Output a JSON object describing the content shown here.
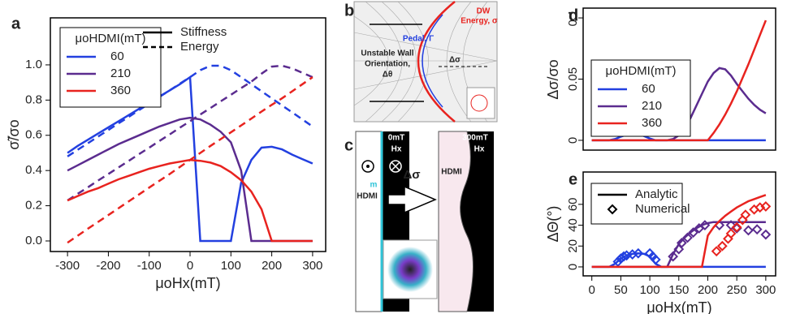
{
  "chart_data": [
    {
      "type": "line",
      "panel_label": "a",
      "xlabel": "μoHx(mT)",
      "ylabel": "σ̃/σo",
      "x": [
        -300,
        -275,
        -250,
        -225,
        -200,
        -175,
        -150,
        -125,
        -100,
        -75,
        -50,
        -25,
        0,
        25,
        50,
        75,
        100,
        125,
        150,
        175,
        200,
        225,
        250,
        275,
        300
      ],
      "xlim": [
        -342,
        332
      ],
      "ylim": [
        -0.06,
        1.267
      ],
      "xticks": [
        -300,
        -200,
        -100,
        0,
        100,
        200,
        300
      ],
      "yticks": [
        {
          "value": 0,
          "label": "0.0"
        },
        0.2,
        0.4,
        0.6,
        0.8,
        {
          "value": 1,
          "label": "1.0"
        }
      ],
      "legend_title": "μoHDMI(mT)",
      "line_legend": [
        {
          "name": "Stiffness",
          "dash": false
        },
        {
          "name": "Energy",
          "dash": true
        }
      ],
      "series": [
        {
          "name": "60",
          "color": "#2340e0",
          "values": [
            0.5,
            0.54,
            0.575,
            0.61,
            0.645,
            0.68,
            0.715,
            0.75,
            0.785,
            0.82,
            0.855,
            0.89,
            0.93,
            0,
            0,
            0,
            0,
            0.33,
            0.46,
            0.53,
            0.535,
            0.52,
            0.49,
            0.465,
            0.44
          ],
          "energy": [
            0.48,
            0.518,
            0.555,
            0.593,
            0.63,
            0.668,
            0.705,
            0.743,
            0.78,
            0.818,
            0.855,
            0.893,
            0.93,
            0.97,
            0.995,
            0.995,
            0.97,
            0.93,
            0.89,
            0.85,
            0.81,
            0.77,
            0.73,
            0.69,
            0.65
          ]
        },
        {
          "name": "210",
          "color": "#5b2c8f",
          "values": [
            0.4,
            0.43,
            0.46,
            0.49,
            0.52,
            0.55,
            0.575,
            0.6,
            0.625,
            0.65,
            0.67,
            0.69,
            0.7,
            0.69,
            0.66,
            0.62,
            0.56,
            0.4,
            0,
            0,
            0,
            0,
            0,
            0,
            0
          ],
          "energy": [
            0.23,
            0.268,
            0.305,
            0.343,
            0.38,
            0.418,
            0.455,
            0.493,
            0.53,
            0.568,
            0.605,
            0.643,
            0.68,
            0.718,
            0.755,
            0.793,
            0.83,
            0.868,
            0.905,
            0.95,
            0.99,
            0.995,
            0.98,
            0.955,
            0.93
          ]
        },
        {
          "name": "360",
          "color": "#e8231f",
          "values": [
            0.23,
            0.255,
            0.28,
            0.3,
            0.325,
            0.35,
            0.37,
            0.39,
            0.41,
            0.425,
            0.44,
            0.45,
            0.46,
            0.455,
            0.445,
            0.425,
            0.39,
            0.345,
            0.28,
            0.18,
            0,
            0,
            0,
            0,
            0
          ],
          "energy": [
            -0.01,
            0.03,
            0.07,
            0.108,
            0.147,
            0.186,
            0.225,
            0.264,
            0.303,
            0.342,
            0.38,
            0.42,
            0.46,
            0.5,
            0.54,
            0.578,
            0.617,
            0.656,
            0.695,
            0.735,
            0.773,
            0.81,
            0.85,
            0.89,
            0.93
          ]
        }
      ]
    },
    {
      "type": "line",
      "panel_label": "d",
      "ylabel": "Δσ/σo",
      "x": [
        0,
        10,
        20,
        30,
        40,
        50,
        60,
        70,
        80,
        90,
        100,
        110,
        120,
        130,
        140,
        150,
        160,
        170,
        180,
        190,
        200,
        210,
        220,
        230,
        240,
        250,
        260,
        270,
        280,
        290,
        300
      ],
      "xlim": [
        -15,
        317
      ],
      "ylim": [
        -0.008,
        0.108
      ],
      "yticks": [
        0,
        0.05,
        0.1
      ],
      "legend_title": "μoHDMI(mT)",
      "series": [
        {
          "name": "60",
          "color": "#2340e0",
          "values": [
            0,
            0,
            0,
            0,
            0.001,
            0.003,
            0.0045,
            0.005,
            0.005,
            0.0035,
            0.0015,
            0,
            0,
            0,
            0,
            0,
            0,
            0,
            0,
            0,
            0,
            0,
            0,
            0,
            0,
            0,
            0,
            0,
            0,
            0,
            0
          ]
        },
        {
          "name": "210",
          "color": "#5b2c8f",
          "values": [
            0,
            0,
            0,
            0,
            0,
            0,
            0,
            0,
            0,
            0,
            0,
            0,
            0,
            0,
            0.001,
            0.004,
            0.01,
            0.018,
            0.028,
            0.038,
            0.048,
            0.055,
            0.059,
            0.058,
            0.053,
            0.046,
            0.04,
            0.034,
            0.029,
            0.025,
            0.022
          ]
        },
        {
          "name": "360",
          "color": "#e8231f",
          "values": [
            0,
            0,
            0,
            0,
            0,
            0,
            0,
            0,
            0,
            0,
            0,
            0,
            0,
            0,
            0,
            0,
            0,
            0,
            0,
            0,
            0,
            0.006,
            0.013,
            0.021,
            0.03,
            0.04,
            0.051,
            0.062,
            0.074,
            0.086,
            0.098
          ]
        }
      ]
    },
    {
      "type": "line",
      "panel_label": "e",
      "xlabel": "μoHx(mT)",
      "ylabel": "ΔΘ(°)",
      "x": [
        0,
        10,
        20,
        30,
        40,
        50,
        60,
        70,
        80,
        90,
        100,
        110,
        120,
        130,
        140,
        150,
        160,
        170,
        180,
        190,
        200,
        210,
        220,
        230,
        240,
        250,
        260,
        270,
        280,
        290,
        300
      ],
      "xlim": [
        -15,
        317
      ],
      "ylim": [
        -8.6,
        91
      ],
      "xticks": [
        0,
        50,
        100,
        150,
        200,
        250,
        300
      ],
      "yticks": [
        0,
        20,
        40,
        60
      ],
      "line_legend": [
        {
          "name": "Analytic",
          "dash": false
        },
        {
          "name": "Numerical",
          "marker": "diamond"
        }
      ],
      "series": [
        {
          "color": "#2340e0",
          "values": [
            0,
            0,
            0,
            0,
            3,
            8,
            11,
            12.5,
            13,
            12.5,
            10,
            3,
            0,
            0,
            0,
            0,
            0,
            0,
            0,
            0,
            0,
            0,
            0,
            0,
            0,
            0,
            0,
            0,
            0,
            0,
            0
          ],
          "numerical": {
            "x": [
              45,
              50,
              55,
              60,
              70,
              80,
              100,
              105,
              110
            ],
            "values": [
              5,
              8,
              10,
              11,
              12,
              13,
              13,
              10,
              7
            ]
          }
        },
        {
          "color": "#5b2c8f",
          "values": [
            0,
            0,
            0,
            0,
            0,
            0,
            0,
            0,
            0,
            0,
            0,
            0,
            0,
            0,
            12,
            22,
            28,
            33,
            37,
            40,
            42,
            43,
            43,
            43,
            43,
            43,
            43,
            43,
            43,
            43,
            43
          ],
          "numerical": {
            "x": [
              140,
              150,
              155,
              165,
              175,
              185,
              195,
              220,
              240,
              250,
              270,
              285,
              300
            ],
            "values": [
              10,
              17,
              23,
              28,
              33,
              37,
              40,
              40,
              40,
              37,
              35,
              36,
              31
            ]
          }
        },
        {
          "color": "#e8231f",
          "values": [
            0,
            0,
            0,
            0,
            0,
            0,
            0,
            0,
            0,
            0,
            0,
            0,
            0,
            0,
            0,
            0,
            0,
            0,
            0,
            0,
            30,
            38,
            44,
            49,
            53,
            57,
            60,
            63,
            65,
            67,
            69
          ],
          "numerical": {
            "x": [
              215,
              225,
              235,
              240,
              250,
              260,
              265,
              280,
              290,
              300
            ],
            "values": [
              15,
              20,
              27,
              32,
              38,
              45,
              50,
              55,
              57,
              58
            ]
          }
        }
      ]
    }
  ],
  "diagram": {
    "b": {
      "panel_label": "b",
      "dw_energy": [
        "DW",
        "Energy, σ"
      ],
      "pedal": "Pedal, Γ",
      "unstable": [
        "Unstable Wall",
        "Orientation,",
        "Δθ"
      ],
      "delta_sigma": "Δσ"
    },
    "c": {
      "panel_label": "c",
      "field_left": "0mT",
      "hx_left": "Hx",
      "m": "m",
      "hdmi_left": "HDMI",
      "delta_sigma": "Δσ",
      "field_right": "300mT",
      "hx_right": "Hx",
      "hdmi_right": "HDMI"
    }
  }
}
